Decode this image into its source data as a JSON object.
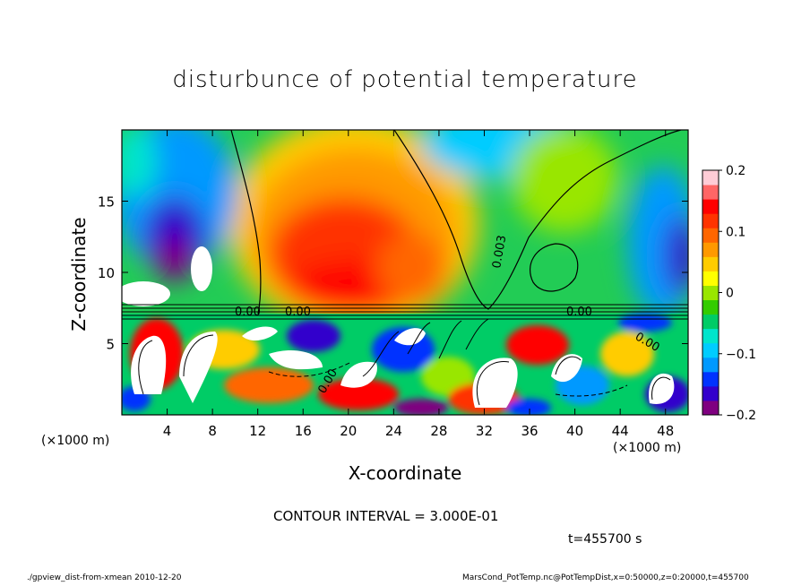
{
  "chart_data": {
    "type": "heatmap",
    "title": "disturbunce of potential temperature",
    "xlabel": "X-coordinate",
    "ylabel": "Z-coordinate",
    "x_unit": "(×1000 m)",
    "z_unit": "(×1000 m)",
    "xlim": [
      0,
      50
    ],
    "ylim": [
      0,
      20
    ],
    "x_ticks": [
      4,
      8,
      12,
      16,
      20,
      24,
      28,
      32,
      36,
      40,
      44,
      48
    ],
    "y_ticks": [
      5,
      10,
      15
    ],
    "colorbar": {
      "range": [
        -0.2,
        0.2
      ],
      "ticks": [
        {
          "value": 0.2,
          "label": "0.2"
        },
        {
          "value": 0.1,
          "label": "0.1"
        },
        {
          "value": 0.0,
          "label": "0"
        },
        {
          "value": -0.1,
          "label": "−0.1"
        },
        {
          "value": -0.2,
          "label": "−0.2"
        }
      ],
      "colors": [
        "#7f0080",
        "#3300cc",
        "#0033ff",
        "#0099ff",
        "#00ccff",
        "#00e5cc",
        "#00cc66",
        "#33cc00",
        "#99e600",
        "#ffff00",
        "#ffcc00",
        "#ff9900",
        "#ff6600",
        "#ff3300",
        "#ff0000",
        "#ff6666",
        "#ffccd6"
      ]
    },
    "contour_labels": [
      "0.00",
      "0.00",
      "0.00",
      "0.003",
      "0.00",
      "0.00"
    ],
    "contour_interval": "CONTOUR INTERVAL = 3.000E-01",
    "time": "t=455700 s"
  },
  "footer": {
    "left": "./gpview_dist-from-xmean   2010-12-20",
    "right": "MarsCond_PotTemp.nc@PotTempDist,x=0:50000,z=0:20000,t=455700"
  }
}
